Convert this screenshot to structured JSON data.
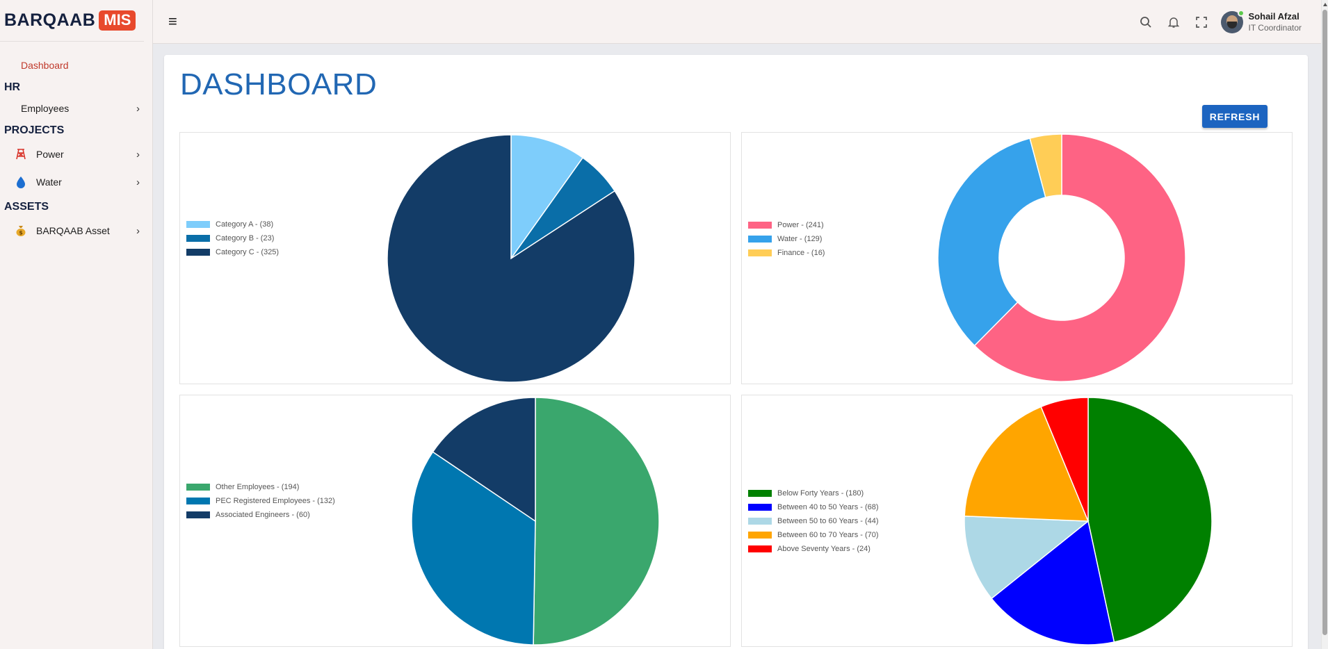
{
  "app": {
    "logo_text": "BARQAAB",
    "logo_badge": "MIS"
  },
  "sidebar": {
    "dashboard": "Dashboard",
    "hr": {
      "title": "HR",
      "items": [
        "Employees"
      ]
    },
    "projects": {
      "title": "PROJECTS",
      "items": [
        {
          "label": "Power",
          "icon": "power-pylon-icon"
        },
        {
          "label": "Water",
          "icon": "water-drop-icon"
        }
      ]
    },
    "assets": {
      "title": "ASSETS",
      "items": [
        {
          "label": "BARQAAB Asset",
          "icon": "money-bag-icon"
        }
      ]
    }
  },
  "topbar": {
    "icons": [
      "menu-icon",
      "search-icon",
      "bell-icon",
      "fullscreen-icon"
    ],
    "user": {
      "name": "Sohail Afzal",
      "role": "IT Coordinator"
    }
  },
  "main": {
    "title": "DASHBOARD",
    "refresh_label": "REFRESH"
  },
  "chart_data": [
    {
      "type": "pie",
      "categories": [
        "Category A",
        "Category B",
        "Category C"
      ],
      "values": [
        38,
        23,
        325
      ],
      "legend": [
        "Category A - (38)",
        "Category B - (23)",
        "Category C - (325)"
      ],
      "colors": [
        "#7ecdfb",
        "#0a6ea8",
        "#133c67"
      ],
      "legend_position": "left"
    },
    {
      "type": "pie",
      "style": "doughnut",
      "categories": [
        "Power",
        "Water",
        "Finance"
      ],
      "values": [
        241,
        129,
        16
      ],
      "legend": [
        "Power - (241)",
        "Water - (129)",
        "Finance - (16)"
      ],
      "colors": [
        "#fe6384",
        "#36a2eb",
        "#ffcd56"
      ],
      "legend_position": "left"
    },
    {
      "type": "pie",
      "categories": [
        "Other Employees",
        "PEC Registered Employees",
        "Associated Engineers"
      ],
      "values": [
        194,
        132,
        60
      ],
      "legend": [
        "Other Employees - (194)",
        "PEC Registered Employees - (132)",
        "Associated Engineers - (60)"
      ],
      "colors": [
        "#3aa76d",
        "#0077b0",
        "#133c67"
      ],
      "legend_position": "left"
    },
    {
      "type": "pie",
      "categories": [
        "Below Forty Years",
        "Between 40 to 50 Years",
        "Between 50 to 60 Years",
        "Between 60 to 70 Years",
        "Above Seventy Years"
      ],
      "values": [
        180,
        68,
        44,
        70,
        24
      ],
      "legend": [
        "Below Forty Years - (180)",
        "Between 40 to 50 Years - (68)",
        "Between 50 to 60 Years - (44)",
        "Between 60 to 70 Years - (70)",
        "Above Seventy Years - (24)"
      ],
      "colors": [
        "#008000",
        "#0000ff",
        "#add8e6",
        "#ffa500",
        "#ff0000"
      ],
      "legend_position": "left"
    }
  ]
}
